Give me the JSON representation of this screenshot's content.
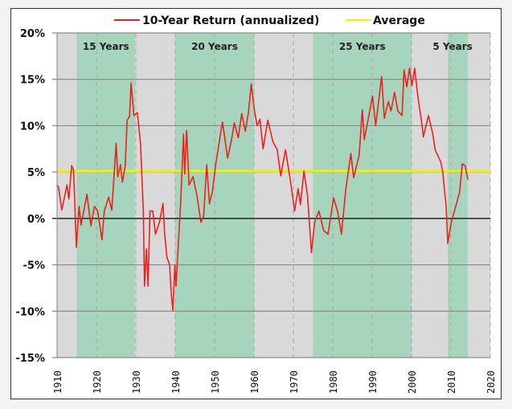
{
  "chart_data": {
    "type": "line",
    "title": "",
    "xlabel": "",
    "ylabel": "",
    "xlim": [
      1910,
      2020
    ],
    "ylim": [
      -15,
      20
    ],
    "x_ticks": [
      "1910",
      "1920",
      "1930",
      "1940",
      "1950",
      "1960",
      "1970",
      "1980",
      "1990",
      "2000",
      "2010",
      "2020"
    ],
    "y_ticks": [
      "20%",
      "15%",
      "10%",
      "5%",
      "0%",
      "-5%",
      "-10%",
      "-15%"
    ],
    "grid": true,
    "legend": {
      "placement": "top",
      "entries": [
        "10-Year Return (annualized)",
        "Average"
      ]
    },
    "colors": {
      "series": "#e8231f",
      "average": "#f2f200",
      "band_green": "#a6d4bc",
      "band_grey": "#d9d9d9"
    },
    "bands": [
      {
        "label": "15 Years",
        "start": 1915,
        "end": 1929.8
      },
      {
        "label": "20 Years",
        "start": 1940,
        "end": 1960
      },
      {
        "label": "25 Years",
        "start": 1975,
        "end": 2000
      },
      {
        "label": "5 Years",
        "start": 2009.2,
        "end": 2014.3
      }
    ],
    "average": {
      "name": "Average",
      "value": 5.1
    },
    "series": [
      {
        "name": "10-Year Return (annualized)",
        "x": [
          1910,
          1910.4,
          1911.2,
          1912.5,
          1913.0,
          1913.7,
          1914.2,
          1914.9,
          1915.6,
          1916.1,
          1917.6,
          1918.6,
          1919.5,
          1920.3,
          1921.4,
          1922.0,
          1923.1,
          1923.9,
          1925.0,
          1925.4,
          1926.1,
          1926.6,
          1927.3,
          1927.8,
          1928.4,
          1928.8,
          1929.5,
          1930.4,
          1931.2,
          1931.9,
          1932.2,
          1932.7,
          1933.1,
          1933.6,
          1934.3,
          1935.0,
          1936.0,
          1936.9,
          1937.3,
          1937.9,
          1938.6,
          1939.0,
          1939.4,
          1939.9,
          1940.2,
          1940.8,
          1941.4,
          1942.1,
          1942.4,
          1942.9,
          1943.5,
          1944.5,
          1945.5,
          1946.5,
          1947.2,
          1948.0,
          1948.7,
          1949.4,
          1950.3,
          1951.2,
          1952.0,
          1953.3,
          1954.3,
          1955.0,
          1956.0,
          1956.9,
          1957.8,
          1958.6,
          1959.3,
          1960.1,
          1960.8,
          1961.5,
          1962.3,
          1963.5,
          1964.8,
          1965.9,
          1966.8,
          1968.0,
          1969.3,
          1970.3,
          1971.2,
          1971.8,
          1972.7,
          1973.6,
          1974.6,
          1975.4,
          1976.5,
          1977.7,
          1978.8,
          1980.2,
          1981.2,
          1982.2,
          1983.3,
          1984.6,
          1985.3,
          1986.7,
          1987.5,
          1988.0,
          1989.0,
          1990.1,
          1990.9,
          1992.4,
          1993.1,
          1994.1,
          1994.8,
          1995.7,
          1996.5,
          1997.6,
          1998.1,
          1998.8,
          1999.5,
          2000.1,
          2000.8,
          2001.6,
          2002.7,
          2003.0,
          2004.3,
          2005.4,
          2006.0,
          2007.4,
          2007.9,
          2008.8,
          2009.2,
          2010.1,
          2011.2,
          2012.2,
          2012.9,
          2013.6,
          2014.3
        ],
        "y": [
          3.6,
          3.3,
          0.9,
          3.6,
          2.1,
          5.7,
          5.2,
          -3.1,
          1.3,
          -0.7,
          2.6,
          -0.8,
          1.3,
          0.8,
          -2.3,
          0.8,
          2.3,
          0.9,
          8.1,
          4.5,
          5.8,
          3.9,
          5.7,
          10.6,
          11.0,
          14.6,
          11.1,
          11.4,
          8.0,
          0.8,
          -7.3,
          -3.3,
          -7.3,
          0.8,
          0.8,
          -1.7,
          -0.4,
          1.6,
          -1.6,
          -4.2,
          -5.0,
          -8.2,
          -9.9,
          -5.0,
          -7.3,
          -2.7,
          1.9,
          9.1,
          4.8,
          9.5,
          3.6,
          4.5,
          2.5,
          -0.4,
          0.2,
          5.8,
          1.6,
          2.8,
          5.9,
          8.3,
          10.4,
          6.5,
          8.5,
          10.3,
          8.7,
          11.3,
          9.4,
          11.4,
          14.5,
          11.7,
          10.0,
          10.7,
          7.5,
          10.6,
          8.3,
          7.4,
          4.6,
          7.4,
          3.9,
          0.8,
          3.2,
          1.5,
          5.1,
          2.5,
          -3.7,
          -0.4,
          0.8,
          -1.3,
          -1.7,
          2.2,
          0.8,
          -1.7,
          3.1,
          7.0,
          4.4,
          6.8,
          11.7,
          8.5,
          10.7,
          13.2,
          10.0,
          15.3,
          10.8,
          12.6,
          11.6,
          13.6,
          11.6,
          11.1,
          16.0,
          14.2,
          16.2,
          14.3,
          16.2,
          13.2,
          10.0,
          8.8,
          11.1,
          9.1,
          7.4,
          6.1,
          5.1,
          1.3,
          -2.7,
          -0.4,
          1.3,
          2.8,
          5.9,
          5.7,
          4.2
        ]
      }
    ]
  }
}
